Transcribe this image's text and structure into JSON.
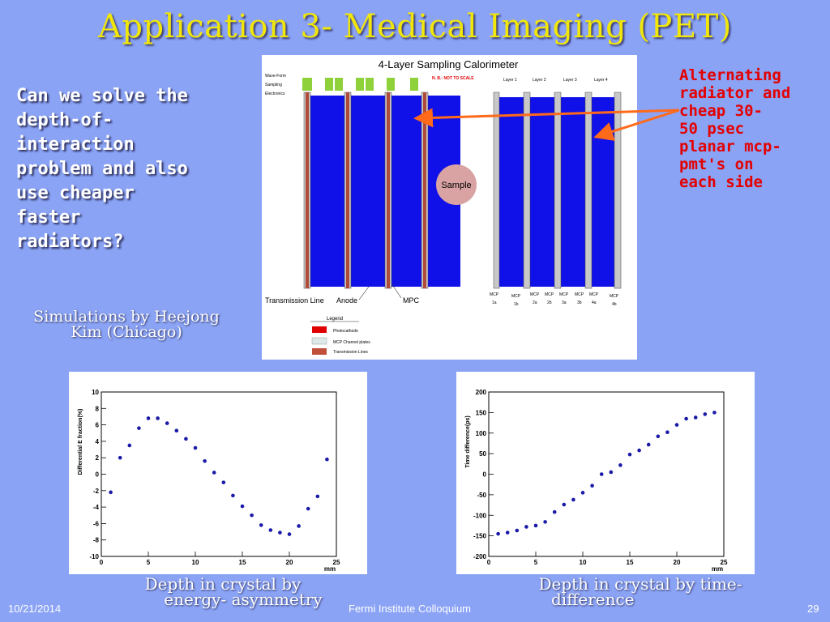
{
  "slide": {
    "title": "Application 3- Medical Imaging (PET)",
    "question_lines": [
      "Can we solve the",
      "depth-of-",
      "interaction",
      "problem and also",
      "use cheaper",
      "faster",
      "radiators?"
    ],
    "sim_credit_lines": [
      "Simulations by Heejong",
      "Kim (Chicago)"
    ],
    "side_note_lines": [
      "Alternating",
      "radiator and",
      "cheap 30-",
      "50 psec",
      "planar mcp-",
      "pmt's on",
      "each side"
    ],
    "arrow_color": "#ff6a1a"
  },
  "diagram": {
    "title": "4-Layer Sampling Calorimeter",
    "note": "N. B.: NOT TO SCALE",
    "waveform_label_lines": [
      "Wave-Form",
      "Sampling",
      "Electronics"
    ],
    "layer_labels": [
      "Layer 1",
      "Layer 2",
      "Layer 3",
      "Layer 4"
    ],
    "sample_label": "Sample",
    "bottom_labels": {
      "transmission": "Transmission Line",
      "anode": "Anode",
      "mpc": "MPC"
    },
    "mcp_labels": [
      {
        "top": "MCP",
        "bottom": "1a"
      },
      {
        "top": "MCP",
        "bottom": "1b"
      },
      {
        "top": "MCP",
        "bottom": "2a"
      },
      {
        "top": "MCP",
        "bottom": "2b"
      },
      {
        "top": "MCP",
        "bottom": "3a"
      },
      {
        "top": "MCP",
        "bottom": "3b"
      },
      {
        "top": "MCP",
        "bottom": "4a"
      },
      {
        "top": "MCP",
        "bottom": "4b"
      }
    ],
    "legend": {
      "title": "Legend",
      "items": [
        {
          "label": "Photocathode",
          "color": "#e00000"
        },
        {
          "label": "MCP Channel plates",
          "color": "#dde8e8"
        },
        {
          "label": "Transmission Lines",
          "color": "#c0503a"
        }
      ]
    },
    "colors": {
      "crystal": "#1010e8",
      "wfs": "#8ed13a",
      "plate": "#c8c8c8",
      "strip": "#b04a3a"
    }
  },
  "captions": {
    "left_lines": [
      "Depth in crystal by",
      "energy- asymmetry"
    ],
    "right_lines": [
      "Depth in crystal by time-",
      "difference"
    ]
  },
  "footer": {
    "date": "10/21/2014",
    "center": "Fermi Institute Colloquium",
    "page": "29"
  },
  "chart_data": [
    {
      "type": "scatter",
      "title": "",
      "xlabel": "mm",
      "ylabel": "Differential E fraction(%)",
      "xlim": [
        0,
        25
      ],
      "ylim": [
        -10,
        10
      ],
      "xticks": [
        0,
        5,
        10,
        15,
        20,
        25
      ],
      "yticks": [
        -10,
        -8,
        -6,
        -4,
        -2,
        0,
        2,
        4,
        6,
        8,
        10
      ],
      "marker_color": "#1a1aa8",
      "x": [
        1,
        2,
        3,
        4,
        5,
        6,
        7,
        8,
        9,
        10,
        11,
        12,
        13,
        14,
        15,
        16,
        17,
        18,
        19,
        20,
        21,
        22,
        23,
        24
      ],
      "y": [
        -2.2,
        2.0,
        3.5,
        5.6,
        6.8,
        6.8,
        6.2,
        5.3,
        4.3,
        3.2,
        1.6,
        0.2,
        -1.0,
        -2.6,
        -3.9,
        -5.0,
        -6.2,
        -6.8,
        -7.1,
        -7.3,
        -6.3,
        -4.2,
        -2.7,
        1.8
      ]
    },
    {
      "type": "scatter",
      "title": "",
      "xlabel": "mm",
      "ylabel": "Time difference(ps)",
      "xlim": [
        0,
        25
      ],
      "ylim": [
        -200,
        200
      ],
      "xticks": [
        0,
        5,
        10,
        15,
        20,
        25
      ],
      "yticks": [
        -200,
        -150,
        -100,
        -50,
        0,
        50,
        100,
        150,
        200
      ],
      "marker_color": "#1a1aa8",
      "x": [
        1,
        2,
        3,
        4,
        5,
        6,
        7,
        8,
        9,
        10,
        11,
        12,
        13,
        14,
        15,
        16,
        17,
        18,
        19,
        20,
        21,
        22,
        23,
        24
      ],
      "y": [
        -145,
        -142,
        -137,
        -128,
        -125,
        -116,
        -92,
        -74,
        -62,
        -45,
        -28,
        0,
        5,
        22,
        48,
        58,
        72,
        92,
        102,
        120,
        135,
        138,
        146,
        150
      ]
    }
  ]
}
